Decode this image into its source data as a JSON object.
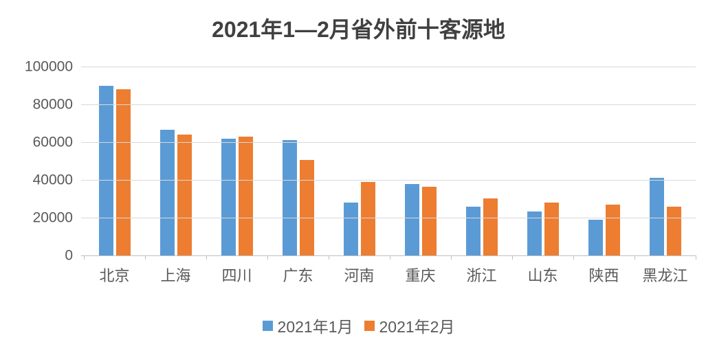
{
  "title": "2021年1—2月省外前十客源地",
  "colors": {
    "series1": "#5B9BD5",
    "series2": "#ED7D31",
    "gridline": "#D9D9D9",
    "axis_line": "#BFBFBF",
    "axis_text": "#595959",
    "title_text": "#404040",
    "background": "#FFFFFF"
  },
  "chart_data": {
    "type": "bar",
    "title": "2021年1—2月省外前十客源地",
    "categories": [
      "北京",
      "上海",
      "四川",
      "广东",
      "河南",
      "重庆",
      "浙江",
      "山东",
      "陕西",
      "黑龙江"
    ],
    "series": [
      {
        "name": "2021年1月",
        "color": "#5B9BD5",
        "values": [
          90000,
          66700,
          62000,
          61000,
          28000,
          38000,
          26000,
          23300,
          18800,
          41000
        ]
      },
      {
        "name": "2021年2月",
        "color": "#ED7D31",
        "values": [
          88000,
          64000,
          63000,
          50500,
          38800,
          36500,
          30200,
          28100,
          27000,
          25700
        ]
      }
    ],
    "xlabel": "",
    "ylabel": "",
    "ylim": [
      0,
      100000
    ],
    "yticks": [
      0,
      20000,
      40000,
      60000,
      80000,
      100000
    ],
    "grid": true,
    "legend_position": "bottom"
  }
}
